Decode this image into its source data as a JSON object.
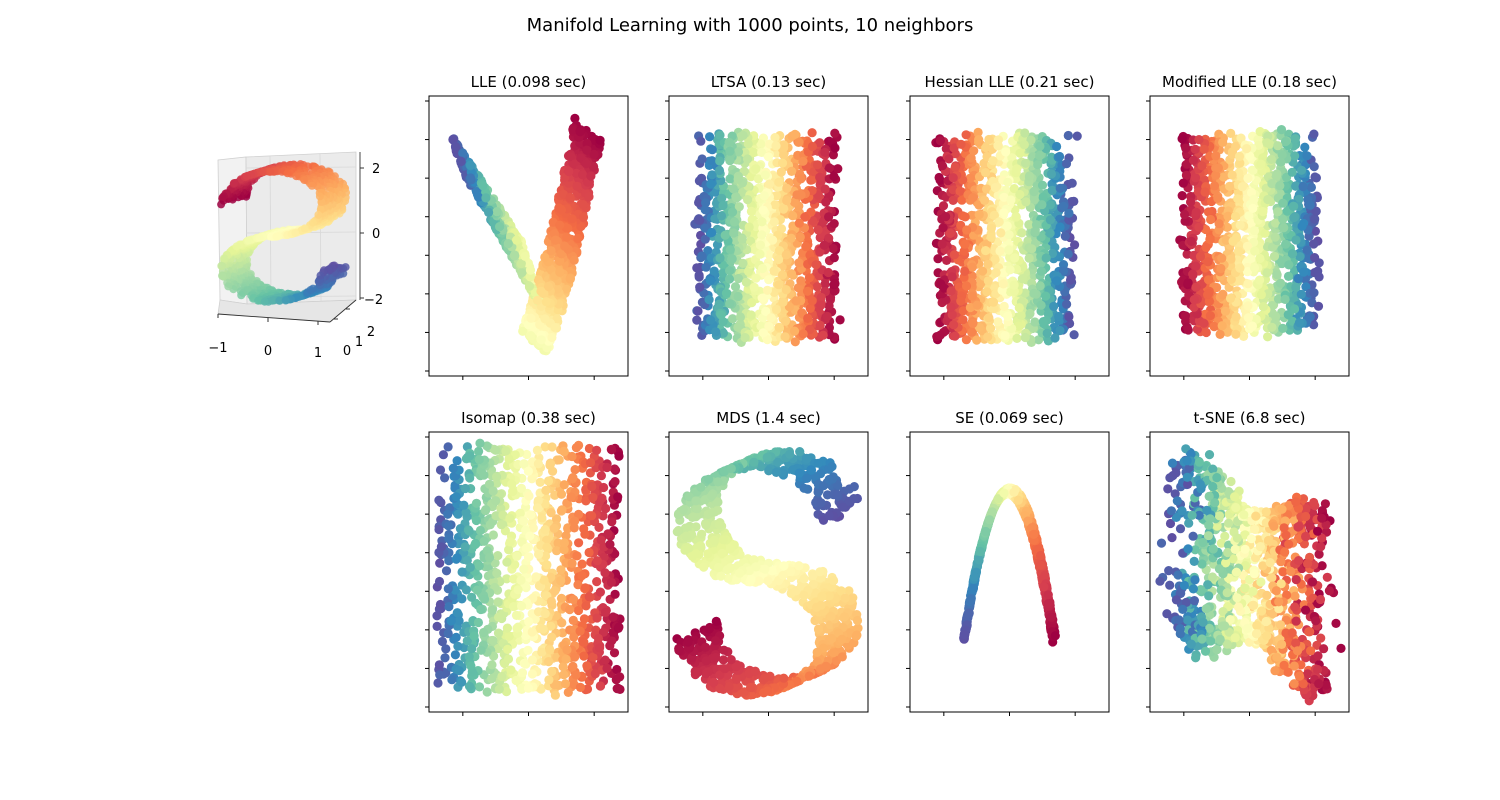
{
  "figure": {
    "title": "Manifold Learning with 1000 points, 10 neighbors"
  },
  "chart_data": [
    {
      "type": "scatter3d",
      "title": "",
      "description_of_data": "S-curve dataset, colored by position along the curve (Spectral colormap: red -> yellow -> blue)",
      "n_points": 1000,
      "x_ticks": [
        "−1",
        "0",
        "1"
      ],
      "y_ticks": [
        "0",
        "1",
        "2"
      ],
      "z_ticks": [
        "2",
        "0",
        "−2"
      ],
      "xlim": [
        -1,
        1
      ],
      "ylim": [
        0,
        2
      ],
      "zlim": [
        -2,
        2
      ],
      "colormap": [
        "#9e0142",
        "#d53e4f",
        "#f46d43",
        "#fdae61",
        "#fee08b",
        "#ffffbf",
        "#e6f598",
        "#abdda4",
        "#66c2a5",
        "#3288bd",
        "#5e4fa2"
      ]
    },
    {
      "type": "scatter",
      "title": "LLE (0.098 sec)",
      "shape": "V-shaped curve",
      "tick_labels_visible": false
    },
    {
      "type": "scatter",
      "title": "LTSA (0.13 sec)",
      "shape": "rectangle, red on left to blue on right",
      "tick_labels_visible": false
    },
    {
      "type": "scatter",
      "title": "Hessian LLE (0.21 sec)",
      "shape": "rectangle, blue on left to red on right",
      "tick_labels_visible": false
    },
    {
      "type": "scatter",
      "title": "Modified LLE (0.18 sec)",
      "shape": "rectangle, blue on left to red on right",
      "tick_labels_visible": false
    },
    {
      "type": "scatter",
      "title": "Isomap (0.38 sec)",
      "shape": "sparse rectangle, red on left to blue on right",
      "tick_labels_visible": false
    },
    {
      "type": "scatter",
      "title": "MDS (1.4 sec)",
      "shape": "S-curve",
      "tick_labels_visible": false
    },
    {
      "type": "scatter",
      "title": "SE (0.069 sec)",
      "shape": "thin inverted-U arc",
      "tick_labels_visible": false
    },
    {
      "type": "scatter",
      "title": "t-SNE (6.8 sec)",
      "shape": "loose looped band",
      "tick_labels_visible": false
    }
  ]
}
